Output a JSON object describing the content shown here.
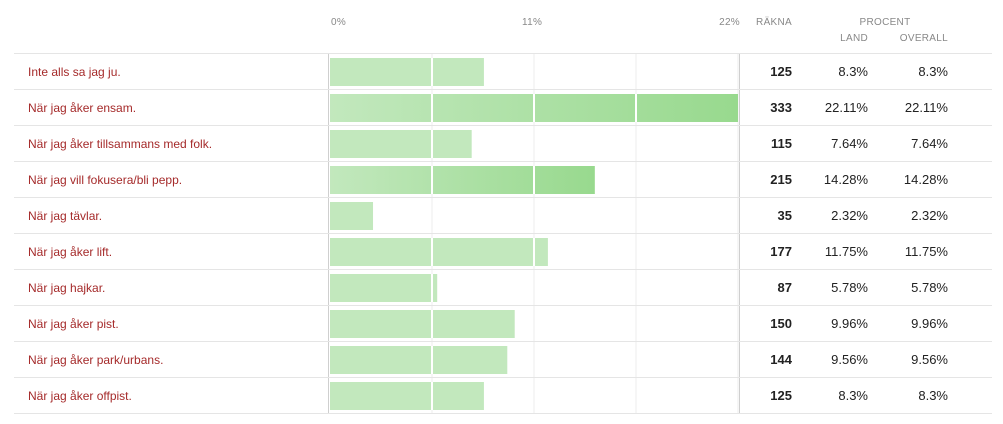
{
  "header": {
    "count_label": "RÄKNA",
    "percent_label": "PROCENT",
    "land_label": "LAND",
    "overall_label": "OVERALL"
  },
  "chart_data": {
    "type": "bar",
    "orientation": "horizontal",
    "x_ticks": [
      "0%",
      "11%",
      "22%"
    ],
    "xlim": [
      0,
      22
    ],
    "categories": [
      "Inte alls sa jag ju.",
      "När jag åker ensam.",
      "När jag åker tillsammans med folk.",
      "När jag vill fokusera/bli pepp.",
      "När jag tävlar.",
      "När jag åker lift.",
      "När jag hajkar.",
      "När jag åker pist.",
      "När jag åker park/urbans.",
      "När jag åker offpist."
    ],
    "values": [
      8.3,
      22.11,
      7.64,
      14.28,
      2.32,
      11.75,
      5.78,
      9.96,
      9.56,
      8.3
    ],
    "counts": [
      "125",
      "333",
      "115",
      "215",
      "35",
      "177",
      "87",
      "150",
      "144",
      "125"
    ],
    "percent_land": [
      "8.3%",
      "22.11%",
      "7.64%",
      "14.28%",
      "2.32%",
      "11.75%",
      "5.78%",
      "9.96%",
      "9.56%",
      "8.3%"
    ],
    "percent_overall": [
      "8.3%",
      "22.11%",
      "7.64%",
      "14.28%",
      "2.32%",
      "11.75%",
      "5.78%",
      "9.96%",
      "9.56%",
      "8.3%"
    ],
    "grid": true,
    "colors": {
      "bar_light": "#c2e8bd",
      "bar_dark": "#98d98e",
      "label": "#a52a2a"
    }
  }
}
